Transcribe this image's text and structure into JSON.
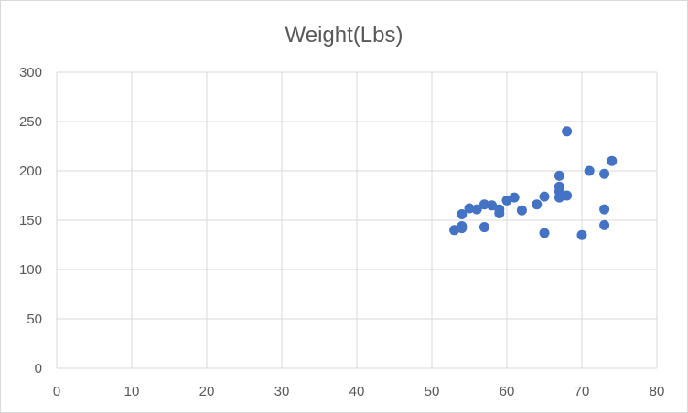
{
  "chart_data": {
    "type": "scatter",
    "title": "Weight(Lbs)",
    "xlabel": "",
    "ylabel": "",
    "xlim": [
      0,
      80
    ],
    "ylim": [
      0,
      300
    ],
    "x_ticks": [
      "0",
      "10",
      "20",
      "30",
      "40",
      "50",
      "60",
      "70",
      "80"
    ],
    "y_ticks": [
      "0",
      "50",
      "100",
      "150",
      "200",
      "250",
      "300"
    ],
    "grid": true,
    "legend": "none",
    "marker_color": "#4472c4",
    "series": [
      {
        "x": [
          53,
          54,
          54,
          54,
          55,
          56,
          57,
          57,
          58,
          59,
          59,
          60,
          61,
          62,
          64,
          65,
          65,
          67,
          67,
          67,
          67,
          68,
          68,
          70,
          71,
          73,
          73,
          73,
          74
        ],
        "y": [
          140,
          144,
          142,
          156,
          162,
          161,
          166,
          143,
          165,
          161,
          157,
          170,
          173,
          160,
          166,
          174,
          137,
          195,
          184,
          179,
          173,
          175,
          240,
          135,
          200,
          197,
          161,
          145,
          210
        ]
      }
    ]
  }
}
